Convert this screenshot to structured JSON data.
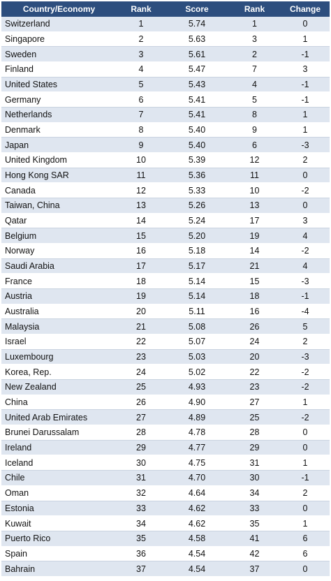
{
  "table": {
    "headers": {
      "country": "Country/Economy",
      "rank": "Rank",
      "score": "Score",
      "prev_rank": "Rank",
      "change": "Change"
    },
    "rows": [
      {
        "country": "Switzerland",
        "rank": "1",
        "score": "5.74",
        "prev_rank": "1",
        "change": "0"
      },
      {
        "country": "Singapore",
        "rank": "2",
        "score": "5.63",
        "prev_rank": "3",
        "change": "1"
      },
      {
        "country": "Sweden",
        "rank": "3",
        "score": "5.61",
        "prev_rank": "2",
        "change": "-1"
      },
      {
        "country": "Finland",
        "rank": "4",
        "score": "5.47",
        "prev_rank": "7",
        "change": "3"
      },
      {
        "country": "United States",
        "rank": "5",
        "score": "5.43",
        "prev_rank": "4",
        "change": "-1"
      },
      {
        "country": "Germany",
        "rank": "6",
        "score": "5.41",
        "prev_rank": "5",
        "change": "-1"
      },
      {
        "country": "Netherlands",
        "rank": "7",
        "score": "5.41",
        "prev_rank": "8",
        "change": "1"
      },
      {
        "country": "Denmark",
        "rank": "8",
        "score": "5.40",
        "prev_rank": "9",
        "change": "1"
      },
      {
        "country": "Japan",
        "rank": "9",
        "score": "5.40",
        "prev_rank": "6",
        "change": "-3"
      },
      {
        "country": "United Kingdom",
        "rank": "10",
        "score": "5.39",
        "prev_rank": "12",
        "change": "2"
      },
      {
        "country": "Hong Kong SAR",
        "rank": "11",
        "score": "5.36",
        "prev_rank": "11",
        "change": "0"
      },
      {
        "country": "Canada",
        "rank": "12",
        "score": "5.33",
        "prev_rank": "10",
        "change": "-2"
      },
      {
        "country": "Taiwan, China",
        "rank": "13",
        "score": "5.26",
        "prev_rank": "13",
        "change": "0"
      },
      {
        "country": "Qatar",
        "rank": "14",
        "score": "5.24",
        "prev_rank": "17",
        "change": "3"
      },
      {
        "country": "Belgium",
        "rank": "15",
        "score": "5.20",
        "prev_rank": "19",
        "change": "4"
      },
      {
        "country": "Norway",
        "rank": "16",
        "score": "5.18",
        "prev_rank": "14",
        "change": "-2"
      },
      {
        "country": "Saudi Arabia",
        "rank": "17",
        "score": "5.17",
        "prev_rank": "21",
        "change": "4"
      },
      {
        "country": "France",
        "rank": "18",
        "score": "5.14",
        "prev_rank": "15",
        "change": "-3"
      },
      {
        "country": "Austria",
        "rank": "19",
        "score": "5.14",
        "prev_rank": "18",
        "change": "-1"
      },
      {
        "country": "Australia",
        "rank": "20",
        "score": "5.11",
        "prev_rank": "16",
        "change": "-4"
      },
      {
        "country": "Malaysia",
        "rank": "21",
        "score": "5.08",
        "prev_rank": "26",
        "change": "5"
      },
      {
        "country": "Israel",
        "rank": "22",
        "score": "5.07",
        "prev_rank": "24",
        "change": "2"
      },
      {
        "country": "Luxembourg",
        "rank": "23",
        "score": "5.03",
        "prev_rank": "20",
        "change": "-3"
      },
      {
        "country": "Korea, Rep.",
        "rank": "24",
        "score": "5.02",
        "prev_rank": "22",
        "change": "-2"
      },
      {
        "country": "New Zealand",
        "rank": "25",
        "score": "4.93",
        "prev_rank": "23",
        "change": "-2"
      },
      {
        "country": "China",
        "rank": "26",
        "score": "4.90",
        "prev_rank": "27",
        "change": "1"
      },
      {
        "country": "United Arab Emirates",
        "rank": "27",
        "score": "4.89",
        "prev_rank": "25",
        "change": "-2"
      },
      {
        "country": "Brunei Darussalam",
        "rank": "28",
        "score": "4.78",
        "prev_rank": "28",
        "change": "0"
      },
      {
        "country": "Ireland",
        "rank": "29",
        "score": "4.77",
        "prev_rank": "29",
        "change": "0"
      },
      {
        "country": "Iceland",
        "rank": "30",
        "score": "4.75",
        "prev_rank": "31",
        "change": "1"
      },
      {
        "country": "Chile",
        "rank": "31",
        "score": "4.70",
        "prev_rank": "30",
        "change": "-1"
      },
      {
        "country": "Oman",
        "rank": "32",
        "score": "4.64",
        "prev_rank": "34",
        "change": "2"
      },
      {
        "country": "Estonia",
        "rank": "33",
        "score": "4.62",
        "prev_rank": "33",
        "change": "0"
      },
      {
        "country": "Kuwait",
        "rank": "34",
        "score": "4.62",
        "prev_rank": "35",
        "change": "1"
      },
      {
        "country": "Puerto Rico",
        "rank": "35",
        "score": "4.58",
        "prev_rank": "41",
        "change": "6"
      },
      {
        "country": "Spain",
        "rank": "36",
        "score": "4.54",
        "prev_rank": "42",
        "change": "6"
      },
      {
        "country": "Bahrain",
        "rank": "37",
        "score": "4.54",
        "prev_rank": "37",
        "change": "0"
      }
    ]
  },
  "colors": {
    "header_bg": "#2d4e7e",
    "header_text": "#ffffff",
    "row_stripe": "#dfe6f0",
    "row_plain": "#ffffff"
  }
}
